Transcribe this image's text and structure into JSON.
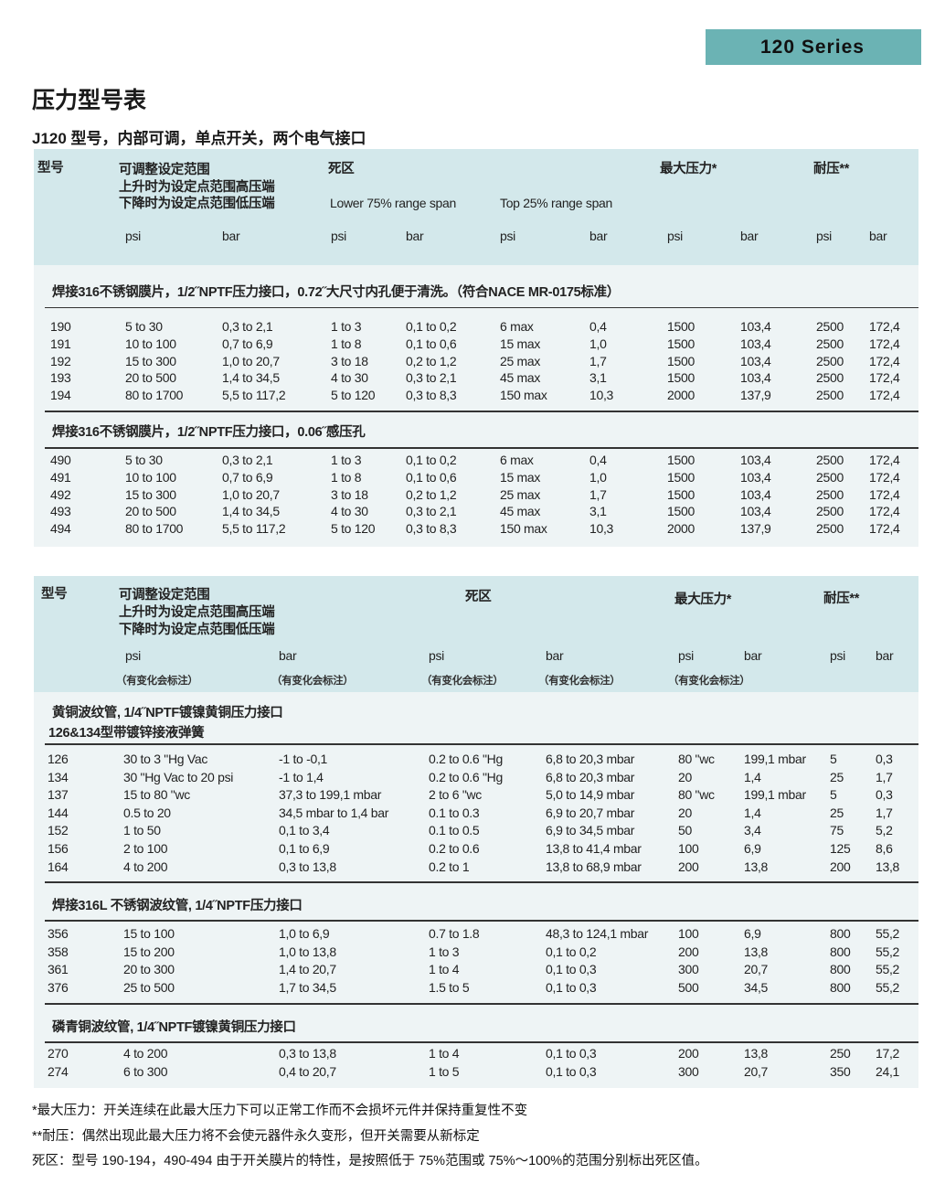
{
  "badge": "120 Series",
  "title": "压力型号表",
  "subtitle": "J120 型号，内部可调，单点开关，两个电气接口",
  "table1": {
    "headers": {
      "model": "型号",
      "range": [
        "可调整设定范围",
        "上升时为设定点范围高压端",
        "下降时为设定点范围低压端"
      ],
      "deadband": "死区",
      "lower": "Lower 75% range span",
      "top": "Top 25% range span",
      "max": "最大压力*",
      "proof": "耐压**",
      "units": [
        "psi",
        "bar",
        "psi",
        "bar",
        "psi",
        "bar",
        "psi",
        "bar",
        "psi",
        "bar"
      ]
    },
    "sections": [
      {
        "title": "焊接316不锈钢膜片，1/2˝NPTF压力接口，0.72˝大尺寸内孔便于清洗。（符合NACE MR-0175标准）",
        "rows": [
          [
            "190",
            "5 to 30",
            "0,3 to 2,1",
            "1 to 3",
            "0,1 to 0,2",
            "6 max",
            "0,4",
            "1500",
            "103,4",
            "2500",
            "172,4"
          ],
          [
            "191",
            "10 to 100",
            "0,7 to 6,9",
            "1 to 8",
            "0,1 to 0,6",
            "15 max",
            "1,0",
            "1500",
            "103,4",
            "2500",
            "172,4"
          ],
          [
            "192",
            "15 to 300",
            "1,0 to 20,7",
            "3 to 18",
            "0,2 to 1,2",
            "25 max",
            "1,7",
            "1500",
            "103,4",
            "2500",
            "172,4"
          ],
          [
            "193",
            "20 to 500",
            "1,4 to 34,5",
            "4 to 30",
            "0,3 to 2,1",
            "45 max",
            "3,1",
            "1500",
            "103,4",
            "2500",
            "172,4"
          ],
          [
            "194",
            "80 to 1700",
            "5,5 to 117,2",
            "5 to 120",
            "0,3 to 8,3",
            "150 max",
            "10,3",
            "2000",
            "137,9",
            "2500",
            "172,4"
          ]
        ]
      },
      {
        "title": "焊接316不锈钢膜片，1/2˝NPTF压力接口，0.06˝感压孔",
        "rows": [
          [
            "490",
            "5 to 30",
            "0,3 to 2,1",
            "1 to 3",
            "0,1 to 0,2",
            "6 max",
            "0,4",
            "1500",
            "103,4",
            "2500",
            "172,4"
          ],
          [
            "491",
            "10 to 100",
            "0,7 to 6,9",
            "1 to 8",
            "0,1 to 0,6",
            "15 max",
            "1,0",
            "1500",
            "103,4",
            "2500",
            "172,4"
          ],
          [
            "492",
            "15 to 300",
            "1,0 to 20,7",
            "3 to 18",
            "0,2 to 1,2",
            "25 max",
            "1,7",
            "1500",
            "103,4",
            "2500",
            "172,4"
          ],
          [
            "493",
            "20 to 500",
            "1,4 to 34,5",
            "4 to 30",
            "0,3 to 2,1",
            "45 max",
            "3,1",
            "1500",
            "103,4",
            "2500",
            "172,4"
          ],
          [
            "494",
            "80 to 1700",
            "5,5 to 117,2",
            "5 to 120",
            "0,3 to 8,3",
            "150 max",
            "10,3",
            "2000",
            "137,9",
            "2500",
            "172,4"
          ]
        ]
      }
    ]
  },
  "table2": {
    "headers": {
      "model": "型号",
      "range": [
        "可调整设定范围",
        "上升时为设定点范围高压端",
        "下降时为设定点范围低压端"
      ],
      "deadband": "死区",
      "max": "最大压力*",
      "proof": "耐压**",
      "units": [
        "psi",
        "bar",
        "psi",
        "bar",
        "psi",
        "bar",
        "psi",
        "bar"
      ],
      "notes": [
        "（有变化会标注）",
        "（有变化会标注）",
        "（有变化会标注）",
        "（有变化会标注）",
        "（有变化会标注）"
      ]
    },
    "sections": [
      {
        "title": "黄铜波纹管, 1/4˝NPTF镀镍黄铜压力接口",
        "title2": "126&134型带镀锌接液弹簧",
        "rows": [
          [
            "126",
            "30 to 3 \"Hg Vac",
            "-1 to -0,1",
            "0.2 to 0.6 \"Hg",
            "6,8 to 20,3 mbar",
            "80 \"wc",
            "199,1 mbar",
            "5",
            "0,3"
          ],
          [
            "134",
            "30 \"Hg Vac to 20 psi",
            "-1 to 1,4",
            "0.2 to 0.6 \"Hg",
            "6,8 to 20,3 mbar",
            "20",
            "1,4",
            "25",
            "1,7"
          ],
          [
            "137",
            "15 to 80 \"wc",
            "37,3 to 199,1 mbar",
            "2 to 6 \"wc",
            "5,0 to 14,9 mbar",
            "80 \"wc",
            "199,1 mbar",
            "5",
            "0,3"
          ],
          [
            "144",
            "0.5 to 20",
            "34,5 mbar to 1,4 bar",
            "0.1 to 0.3",
            "6,9 to 20,7 mbar",
            "20",
            "1,4",
            "25",
            "1,7"
          ],
          [
            "152",
            "1 to 50",
            "0,1 to 3,4",
            "0.1 to 0.5",
            "6,9 to 34,5 mbar",
            "50",
            "3,4",
            "75",
            "5,2"
          ],
          [
            "156",
            "2 to 100",
            "0,1 to 6,9",
            "0.2 to 0.6",
            "13,8 to 41,4 mbar",
            "100",
            "6,9",
            "125",
            "8,6"
          ],
          [
            "164",
            "4 to 200",
            "0,3 to 13,8",
            "0.2 to 1",
            "13,8 to 68,9 mbar",
            "200",
            "13,8",
            "200",
            "13,8"
          ]
        ]
      },
      {
        "title": "焊接316L 不锈钢波纹管, 1/4˝NPTF压力接口",
        "rows": [
          [
            "356",
            "15 to 100",
            "1,0 to 6,9",
            "0.7 to 1.8",
            "48,3 to 124,1 mbar",
            "100",
            "6,9",
            "800",
            "55,2"
          ],
          [
            "358",
            "15 to 200",
            "1,0 to 13,8",
            "1 to 3",
            "0,1 to 0,2",
            "200",
            "13,8",
            "800",
            "55,2"
          ],
          [
            "361",
            "20 to 300",
            "1,4 to 20,7",
            "1 to 4",
            "0,1 to 0,3",
            "300",
            "20,7",
            "800",
            "55,2"
          ],
          [
            "376",
            "25 to 500",
            "1,7 to 34,5",
            "1.5 to 5",
            "0,1 to 0,3",
            "500",
            "34,5",
            "800",
            "55,2"
          ]
        ]
      },
      {
        "title": "磷青铜波纹管, 1/4˝NPTF镀镍黄铜压力接口",
        "rows": [
          [
            "270",
            "4 to 200",
            "0,3 to 13,8",
            "1 to 4",
            "0,1 to 0,3",
            "200",
            "13,8",
            "250",
            "17,2"
          ],
          [
            "274",
            "6 to 300",
            "0,4 to 20,7",
            "1 to 5",
            "0,1 to 0,3",
            "300",
            "20,7",
            "350",
            "24,1"
          ]
        ]
      }
    ]
  },
  "footnotes": [
    "*最大压力：开关连续在此最大压力下可以正常工作而不会损坏元件并保持重复性不变",
    "**耐压：偶然出现此最大压力将不会使元器件永久变形，但开关需要从新标定",
    "死区：型号 190-194，490-494 由于开关膜片的特性，是按照低于 75%范围或 75%～100%的范围分别标出死区值。"
  ],
  "colors": {
    "badge": "#6bb3b4",
    "header_bg": "#d3e8eb",
    "body_bg": "#eef4f5"
  }
}
